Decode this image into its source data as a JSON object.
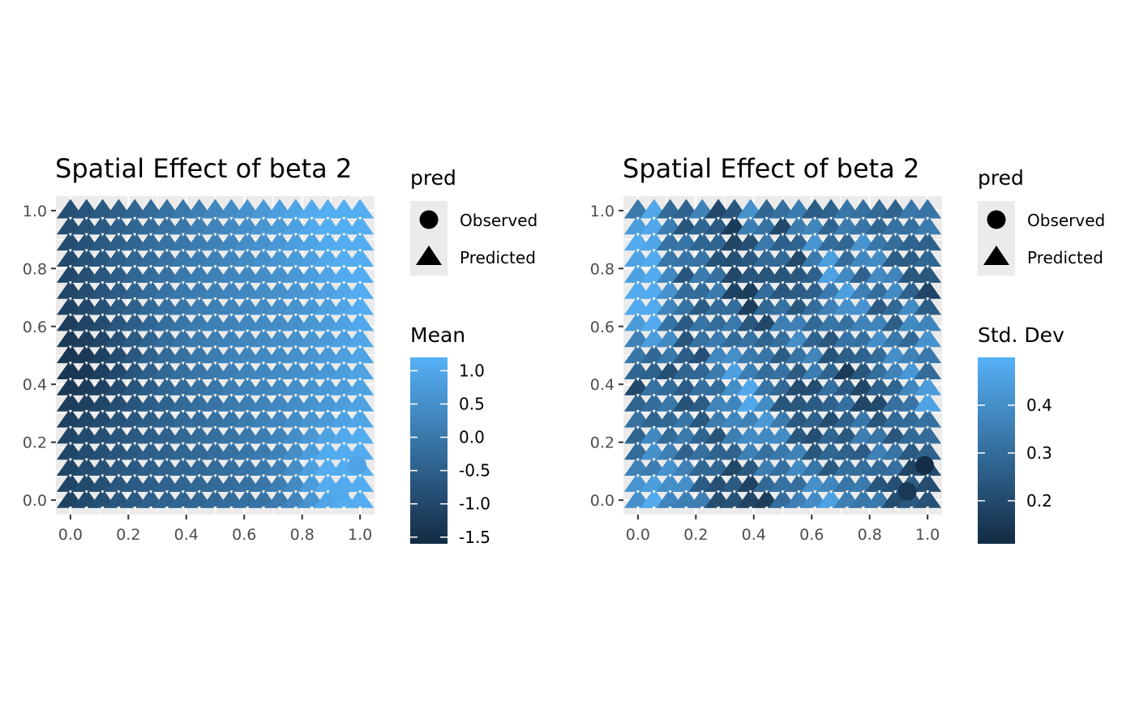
{
  "chart_data": [
    {
      "type": "scatter",
      "title": "Spatial Effect of beta 2",
      "xlabel": "",
      "ylabel": "",
      "xlim": [
        -0.05,
        1.05
      ],
      "ylim": [
        -0.05,
        1.05
      ],
      "x_ticks": [
        0.0,
        0.2,
        0.4,
        0.6,
        0.8,
        1.0
      ],
      "y_ticks": [
        0.0,
        0.2,
        0.4,
        0.6,
        0.8,
        1.0
      ],
      "x_tick_labels": [
        "0.0",
        "0.2",
        "0.4",
        "0.6",
        "0.8",
        "1.0"
      ],
      "y_tick_labels": [
        "0.0",
        "0.2",
        "0.4",
        "0.6",
        "0.8",
        "1.0"
      ],
      "grid": true,
      "shape_legend": {
        "title": "pred",
        "entries": [
          "Observed",
          "Predicted"
        ]
      },
      "color_legend": {
        "title": "Mean",
        "min": -1.6,
        "max": 1.2,
        "breaks": [
          1.0,
          0.5,
          0.0,
          -0.5,
          -1.0,
          -1.5
        ],
        "labels": [
          "1.0",
          "0.5",
          "0.0",
          "-0.5",
          "-1.0",
          "-1.5"
        ]
      },
      "field": "mean",
      "observed_points": [
        {
          "x": 0.93,
          "y": 0.03,
          "value": 1.05
        },
        {
          "x": 0.99,
          "y": 0.12,
          "value": 0.9
        }
      ],
      "predicted_grid": {
        "n": 19,
        "x_range": [
          0,
          1
        ],
        "y_range": [
          0,
          1
        ],
        "value_range": [
          -1.5,
          1.1
        ]
      }
    },
    {
      "type": "scatter",
      "title": "Spatial Effect of beta 2",
      "xlabel": "",
      "ylabel": "",
      "xlim": [
        -0.05,
        1.05
      ],
      "ylim": [
        -0.05,
        1.05
      ],
      "x_ticks": [
        0.0,
        0.2,
        0.4,
        0.6,
        0.8,
        1.0
      ],
      "y_ticks": [
        0.0,
        0.2,
        0.4,
        0.6,
        0.8,
        1.0
      ],
      "x_tick_labels": [
        "0.0",
        "0.2",
        "0.4",
        "0.6",
        "0.8",
        "1.0"
      ],
      "y_tick_labels": [
        "0.0",
        "0.2",
        "0.4",
        "0.6",
        "0.8",
        "1.0"
      ],
      "grid": true,
      "shape_legend": {
        "title": "pred",
        "entries": [
          "Observed",
          "Predicted"
        ]
      },
      "color_legend": {
        "title": "Std. Dev",
        "min": 0.11,
        "max": 0.5,
        "breaks": [
          0.4,
          0.3,
          0.2
        ],
        "labels": [
          "0.4",
          "0.3",
          "0.2"
        ]
      },
      "field": "sd",
      "observed_points": [
        {
          "x": 0.93,
          "y": 0.03,
          "value": 0.15
        },
        {
          "x": 0.99,
          "y": 0.12,
          "value": 0.12
        }
      ],
      "predicted_grid": {
        "n": 19,
        "x_range": [
          0,
          1
        ],
        "y_range": [
          0,
          1
        ],
        "value_range": [
          0.12,
          0.48
        ]
      }
    }
  ],
  "colors": {
    "low": "#132b43",
    "high": "#56b1f7",
    "panel_bg": "#ebebeb",
    "grid": "#ffffff",
    "legend_key_bg": "#ebebeb"
  }
}
